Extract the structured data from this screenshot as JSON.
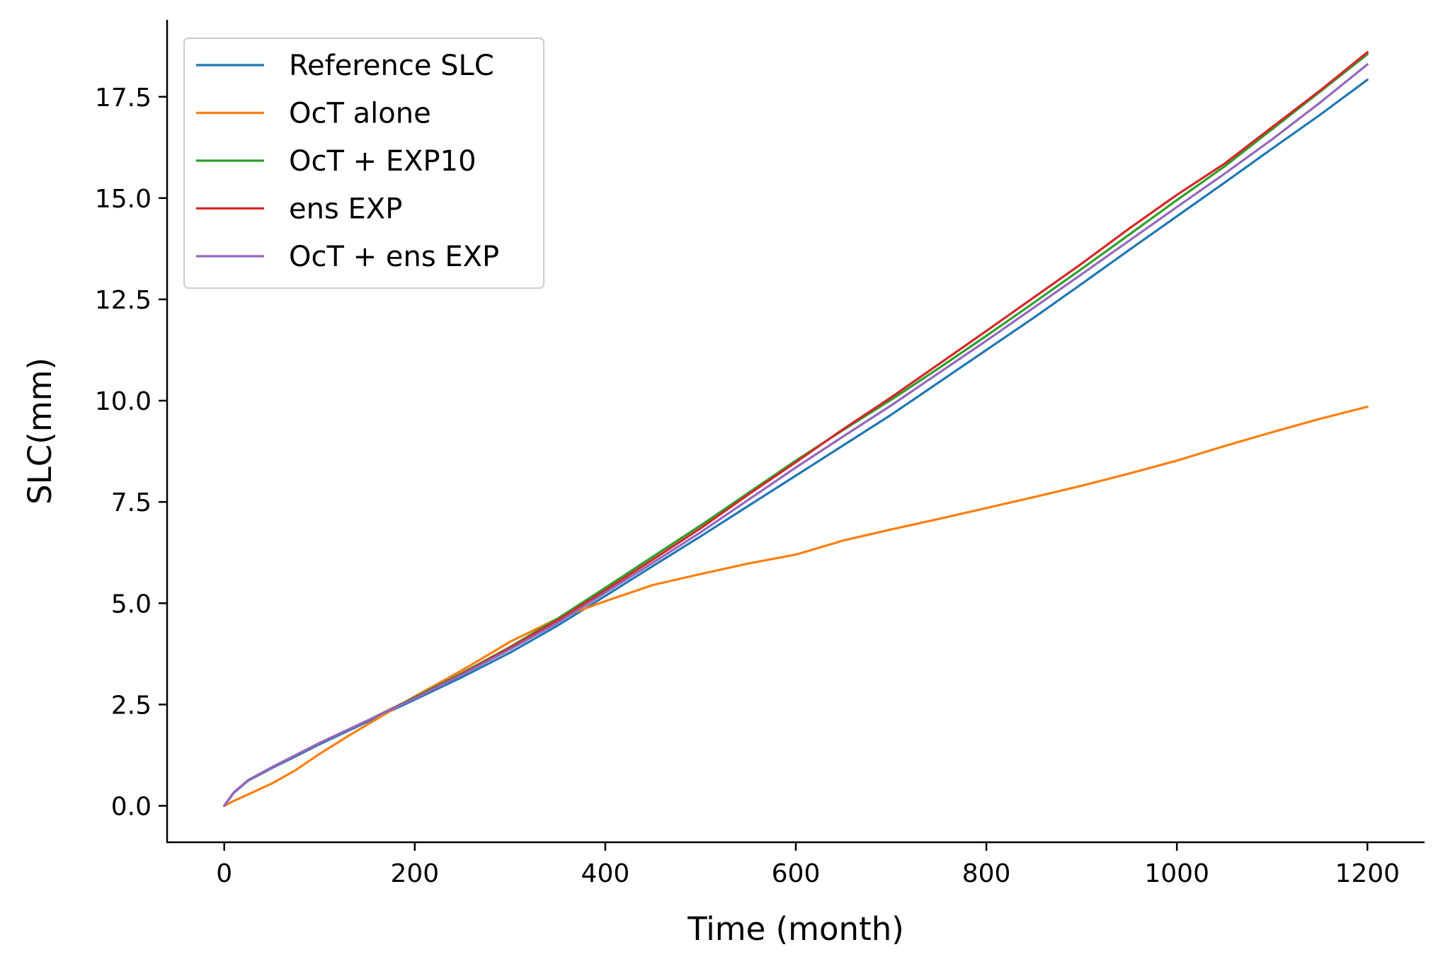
{
  "chart_data": {
    "type": "line",
    "xlabel": "Time (month)",
    "ylabel": "SLC(mm)",
    "xlim": [
      -60,
      1260
    ],
    "ylim": [
      -0.9,
      19.4
    ],
    "xticks": [
      0,
      200,
      400,
      600,
      800,
      1000,
      1200
    ],
    "yticks": [
      0.0,
      2.5,
      5.0,
      7.5,
      10.0,
      12.5,
      15.0,
      17.5
    ],
    "xtick_labels": [
      "0",
      "200",
      "400",
      "600",
      "800",
      "1000",
      "1200"
    ],
    "ytick_labels": [
      "0.0",
      "2.5",
      "5.0",
      "7.5",
      "10.0",
      "12.5",
      "15.0",
      "17.5"
    ],
    "grid": false,
    "legend_position": "top-left",
    "x": [
      0,
      10,
      25,
      50,
      75,
      100,
      130,
      150,
      200,
      250,
      300,
      350,
      400,
      450,
      500,
      550,
      600,
      650,
      700,
      750,
      800,
      850,
      900,
      950,
      1000,
      1050,
      1100,
      1150,
      1200
    ],
    "series": [
      {
        "name": "Reference SLC",
        "color": "#1f77b4",
        "values": [
          0.0,
          0.32,
          0.62,
          0.93,
          1.22,
          1.52,
          1.85,
          2.07,
          2.62,
          3.18,
          3.78,
          4.45,
          5.18,
          5.92,
          6.65,
          7.4,
          8.15,
          8.9,
          9.65,
          10.45,
          11.25,
          12.05,
          12.88,
          13.72,
          14.55,
          15.38,
          16.22,
          17.05,
          17.92
        ]
      },
      {
        "name": "OcT alone",
        "color": "#ff7f0e",
        "values": [
          0.0,
          0.12,
          0.28,
          0.55,
          0.88,
          1.28,
          1.72,
          2.0,
          2.7,
          3.35,
          4.05,
          4.62,
          5.05,
          5.45,
          5.72,
          5.98,
          6.2,
          6.55,
          6.82,
          7.08,
          7.35,
          7.62,
          7.9,
          8.2,
          8.52,
          8.88,
          9.22,
          9.55,
          9.85
        ]
      },
      {
        "name": "OcT + EXP10",
        "color": "#2ca02c",
        "values": [
          0.0,
          0.33,
          0.63,
          0.95,
          1.25,
          1.55,
          1.88,
          2.1,
          2.68,
          3.28,
          3.92,
          4.62,
          5.38,
          6.15,
          6.92,
          7.72,
          8.52,
          9.28,
          10.02,
          10.8,
          11.6,
          12.42,
          13.25,
          14.1,
          14.95,
          15.78,
          16.7,
          17.62,
          18.55
        ]
      },
      {
        "name": "ens EXP",
        "color": "#d62728",
        "values": [
          0.0,
          0.33,
          0.63,
          0.95,
          1.25,
          1.55,
          1.88,
          2.1,
          2.66,
          3.26,
          3.9,
          4.58,
          5.32,
          6.08,
          6.85,
          7.68,
          8.48,
          9.3,
          10.08,
          10.9,
          11.72,
          12.55,
          13.38,
          14.25,
          15.08,
          15.85,
          16.75,
          17.65,
          18.6
        ]
      },
      {
        "name": "OcT + ens EXP",
        "color": "#9467bd",
        "values": [
          0.0,
          0.33,
          0.63,
          0.95,
          1.25,
          1.55,
          1.88,
          2.1,
          2.65,
          3.24,
          3.86,
          4.52,
          5.26,
          6.0,
          6.75,
          7.55,
          8.35,
          9.12,
          9.88,
          10.68,
          11.48,
          12.3,
          13.12,
          13.95,
          14.78,
          15.6,
          16.45,
          17.35,
          18.3
        ]
      }
    ]
  }
}
